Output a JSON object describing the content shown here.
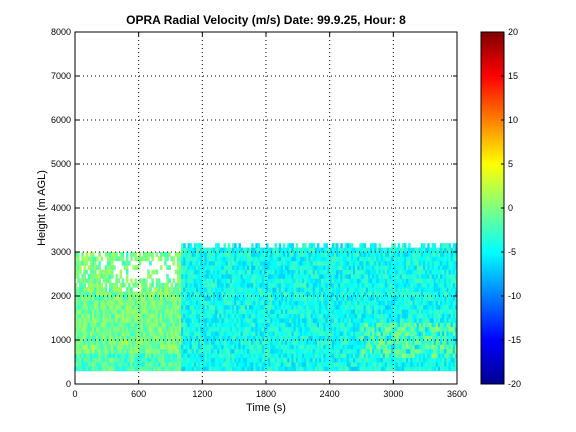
{
  "chart_data": {
    "type": "heatmap",
    "title": "OPRA Radial Velocity (m/s)  Date: 99.9.25, Hour: 8",
    "xlabel": "Time (s)",
    "ylabel": "Height (m AGL)",
    "xlim": [
      0,
      3600
    ],
    "ylim": [
      0,
      8000
    ],
    "x_ticks": [
      "0",
      "600",
      "1200",
      "1800",
      "2400",
      "3000",
      "3600"
    ],
    "y_ticks": [
      "0",
      "1000",
      "2000",
      "3000",
      "4000",
      "5000",
      "6000",
      "7000",
      "8000"
    ],
    "grid": true,
    "grid_style": "dotted",
    "colormap": "jet",
    "clim": [
      -20,
      20
    ],
    "colorbar_ticks": [
      "20",
      "15",
      "10",
      "5",
      "0",
      "-5",
      "-10",
      "-15",
      "-20"
    ],
    "colorbar_values": [
      20,
      15,
      10,
      5,
      0,
      -5,
      -10,
      -15,
      -20
    ],
    "data_extent": {
      "x": [
        0,
        3600
      ],
      "height_min": 300,
      "height_max_first": 3000,
      "height_max_later": 3200
    },
    "regions": [
      {
        "x": [
          0,
          1000
        ],
        "height": [
          300,
          3000
        ],
        "typical_value": 0.5,
        "description_values": [
          -3,
          2
        ]
      },
      {
        "x": [
          1000,
          3600
        ],
        "height": [
          300,
          3200
        ],
        "typical_value": -4,
        "description_values": [
          -7,
          -2
        ]
      },
      {
        "x": [
          2700,
          3600
        ],
        "height": [
          600,
          1400
        ],
        "typical_value": 0,
        "description_values": [
          -2,
          1
        ]
      }
    ]
  }
}
